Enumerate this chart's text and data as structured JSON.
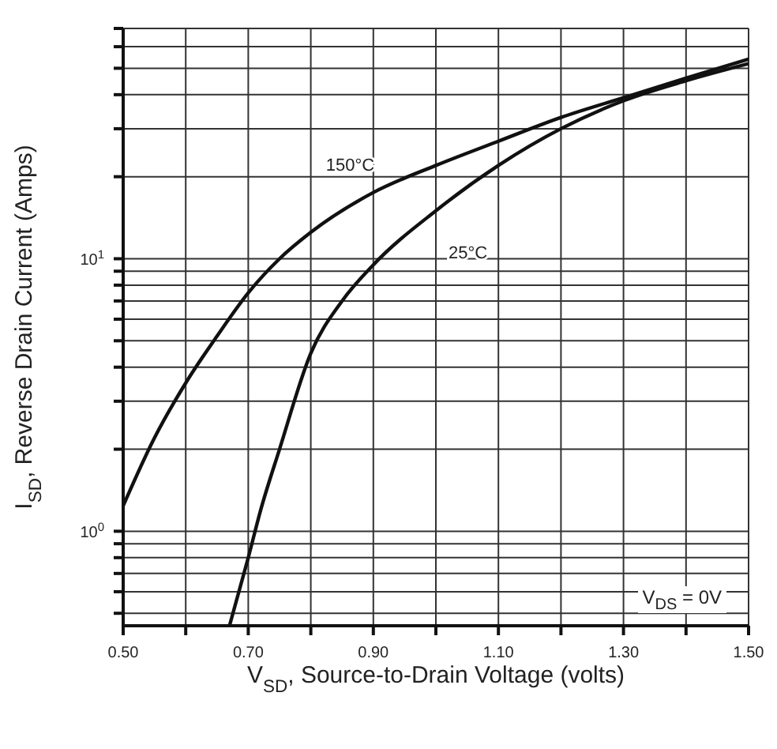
{
  "chart_data": {
    "type": "line",
    "xlabel": "V$_{SD}$, Source-to-Drain Voltage (volts)",
    "ylabel": "I$_{SD}$, Reverse Drain Current (Amps)",
    "log": "y",
    "grid": true,
    "marker": "none",
    "line_style": "solid",
    "legend": false,
    "xlim": [
      0.5,
      1.5
    ],
    "xticks": [
      {
        "value": 0.5,
        "label": "0.50"
      },
      {
        "value": 0.6,
        "label": null
      },
      {
        "value": 0.7,
        "label": "0.70"
      },
      {
        "value": 0.8,
        "label": null
      },
      {
        "value": 0.9,
        "label": "0.90"
      },
      {
        "value": 1.0,
        "label": null
      },
      {
        "value": 1.1,
        "label": "1.10"
      },
      {
        "value": 1.2,
        "label": null
      },
      {
        "value": 1.3,
        "label": "1.30"
      },
      {
        "value": 1.4,
        "label": null
      },
      {
        "value": 1.5,
        "label": "1.50"
      }
    ],
    "ylim": [
      0.45,
      70
    ],
    "yticks": [
      {
        "value": 0.5,
        "label": null
      },
      {
        "value": 0.6,
        "label": null
      },
      {
        "value": 0.7,
        "label": null
      },
      {
        "value": 0.8,
        "label": null
      },
      {
        "value": 0.9,
        "label": null
      },
      {
        "value": 1,
        "label": "10$^{0}$"
      },
      {
        "value": 2,
        "label": null
      },
      {
        "value": 3,
        "label": null
      },
      {
        "value": 4,
        "label": null
      },
      {
        "value": 5,
        "label": null
      },
      {
        "value": 6,
        "label": null
      },
      {
        "value": 7,
        "label": null
      },
      {
        "value": 8,
        "label": null
      },
      {
        "value": 9,
        "label": null
      },
      {
        "value": 10,
        "label": "10$^{1}$"
      },
      {
        "value": 20,
        "label": null
      },
      {
        "value": 30,
        "label": null
      },
      {
        "value": 40,
        "label": null
      },
      {
        "value": 50,
        "label": null
      },
      {
        "value": 60,
        "label": null
      },
      {
        "value": 70,
        "label": null
      }
    ],
    "annotations": [
      "V$_{DS}$ = 0V"
    ],
    "series": [
      {
        "name": "150°C",
        "color": "#111111",
        "x": [
          0.5,
          0.55,
          0.6,
          0.65,
          0.7,
          0.75,
          0.8,
          0.9,
          1.0,
          1.1,
          1.2,
          1.3,
          1.4,
          1.5
        ],
        "values": [
          1.24,
          2.2,
          3.5,
          5.2,
          7.5,
          10,
          12.5,
          17.5,
          22,
          27,
          33,
          39,
          46,
          54
        ]
      },
      {
        "name": "25°C",
        "color": "#111111",
        "x": [
          0.67,
          0.7,
          0.72,
          0.75,
          0.8,
          0.85,
          0.9,
          1.0,
          1.1,
          1.2,
          1.3,
          1.4,
          1.5
        ],
        "values": [
          0.45,
          0.8,
          1.2,
          2.0,
          4.5,
          7,
          9.5,
          15,
          22,
          30,
          38,
          45,
          52
        ]
      }
    ]
  }
}
